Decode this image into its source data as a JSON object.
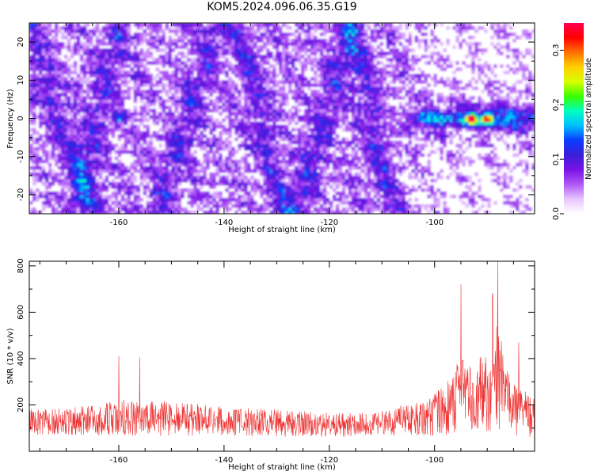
{
  "title": "KOM5.2024.096.06.35.G19",
  "chart_data": [
    {
      "type": "heatmap",
      "xlabel": "Height of straight line (km)",
      "ylabel": "Frequency (Hz)",
      "xlim": [
        -177,
        -81
      ],
      "ylim": [
        -25,
        25
      ],
      "xticks": [
        -160,
        -140,
        -120,
        -100
      ],
      "yticks": [
        -20,
        -10,
        0,
        10,
        20
      ],
      "colorbar": {
        "label": "Normalized spectral amplitude",
        "range": [
          0,
          0.35
        ],
        "ticks": [
          0.0,
          0.1,
          0.2,
          0.3
        ],
        "colormap": [
          "#ffffff",
          "#e8c6ff",
          "#b058f5",
          "#7a12e6",
          "#3a1ed8",
          "#0a3cff",
          "#00bfff",
          "#00ffc0",
          "#38ff00",
          "#d8ff00",
          "#ffd000",
          "#ff7000",
          "#ff0000",
          "#ff0050"
        ]
      },
      "features": [
        {
          "x": [
            -105,
            -83
          ],
          "y": [
            -3,
            3
          ],
          "peak": 0.33,
          "note": "strong band near 0 Hz"
        },
        {
          "x": -93,
          "y": 0,
          "value": 0.33
        },
        {
          "x": -90,
          "y": 0,
          "value": 0.33
        },
        {
          "x": -160,
          "y": 0,
          "value": 0.19
        },
        {
          "x": -156,
          "y": 21,
          "value": 0.13
        },
        {
          "x": -153,
          "y": -19,
          "value": 0.12
        }
      ],
      "grid": false
    },
    {
      "type": "line",
      "xlabel": "Height of straight line (km)",
      "ylabel": "SNR (10 * v/v)",
      "xlim": [
        -177,
        -81
      ],
      "ylim": [
        0,
        820
      ],
      "xticks": [
        -160,
        -140,
        -120,
        -100
      ],
      "yticks": [
        200,
        400,
        600,
        800
      ],
      "line_color": "#ee3333",
      "envelope": {
        "x": [
          -177,
          -165,
          -160,
          -150,
          -140,
          -130,
          -120,
          -112,
          -105,
          -100,
          -97,
          -95,
          -93,
          -91,
          -89,
          -88,
          -86,
          -84,
          -82,
          -81
        ],
        "baseline": [
          110,
          115,
          120,
          118,
          110,
          105,
          100,
          100,
          110,
          130,
          160,
          200,
          190,
          200,
          210,
          230,
          170,
          140,
          130,
          120
        ],
        "amplitude": [
          110,
          130,
          160,
          150,
          130,
          120,
          110,
          100,
          150,
          180,
          260,
          320,
          280,
          330,
          380,
          520,
          260,
          220,
          200,
          170
        ]
      },
      "peaks": [
        {
          "x": -160,
          "y": 410
        },
        {
          "x": -156,
          "y": 405
        },
        {
          "x": -95,
          "y": 720
        },
        {
          "x": -89,
          "y": 680
        },
        {
          "x": -88,
          "y": 820
        },
        {
          "x": -84,
          "y": 470
        }
      ],
      "grid": false
    }
  ]
}
